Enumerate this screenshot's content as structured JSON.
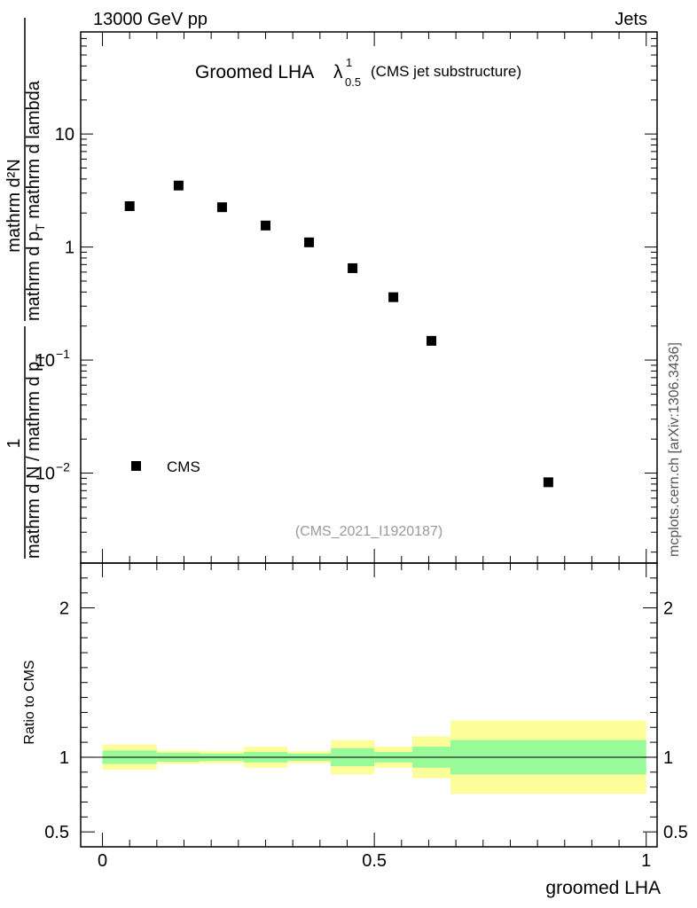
{
  "header": {
    "left": "13000 GeV pp",
    "right": "Jets"
  },
  "watermark": "mcplots.cern.ch [arXiv:1306.3436]",
  "chart_data": [
    {
      "type": "scatter",
      "title": {
        "main": "Groomed LHA",
        "lambda": "λ",
        "sup": "1",
        "sub": "0.5",
        "suffix": "(CMS jet substructure)"
      },
      "analysis_label": "(CMS_2021_I1920187)",
      "yscale": "log",
      "ylim": [
        0.0016,
        80
      ],
      "xlim": [
        -0.04,
        1.02
      ],
      "ylabel": {
        "numerator": "mathrm d²N",
        "denominator": "mathrm d p_T mathrm d lambda",
        "prefactor_num": "1",
        "prefactor_den": "mathrm d N / mathrm d p_T",
        "den2": "mathrm d p",
        "den2_sub": "T",
        "den2_rest": " mathrm d lambda",
        "pf_a": "mathrm d N / mathrm d p",
        "pf_sub": "T"
      },
      "yticks": [
        {
          "value": 10,
          "label": "10"
        },
        {
          "value": 1,
          "label": "1"
        },
        {
          "value": 0.1,
          "label": "10",
          "exp": "−1"
        },
        {
          "value": 0.01,
          "label": "10",
          "exp": "−2"
        }
      ],
      "legend": {
        "position": "bottom-left",
        "entries": [
          "CMS"
        ]
      },
      "series": [
        {
          "name": "CMS",
          "x": [
            0.05,
            0.14,
            0.22,
            0.3,
            0.38,
            0.46,
            0.535,
            0.605,
            0.82
          ],
          "y": [
            2.3,
            3.5,
            2.25,
            1.55,
            1.1,
            0.65,
            0.36,
            0.148,
            0.0083
          ]
        }
      ]
    },
    {
      "type": "area",
      "ylabel": "Ratio to CMS",
      "xlabel": "groomed LHA",
      "ylim": [
        0.4,
        2.3
      ],
      "xlim": [
        -0.04,
        1.02
      ],
      "xticks": [
        {
          "value": 0,
          "label": "0"
        },
        {
          "value": 0.5,
          "label": "0.5"
        },
        {
          "value": 1,
          "label": "1"
        }
      ],
      "yticks": [
        {
          "value": 2,
          "label": "2"
        },
        {
          "value": 1,
          "label": "1"
        },
        {
          "value": 0.5,
          "label": "0.5"
        }
      ],
      "reference_line": 1,
      "colors": {
        "inner": "#99fa99",
        "outer": "#fdfd99"
      },
      "bins": [
        {
          "x0": 0.0,
          "x1": 0.1,
          "inner": [
            0.955,
            1.045
          ],
          "outer": [
            0.915,
            1.085
          ]
        },
        {
          "x0": 0.1,
          "x1": 0.18,
          "inner": [
            0.97,
            1.03
          ],
          "outer": [
            0.955,
            1.045
          ]
        },
        {
          "x0": 0.18,
          "x1": 0.26,
          "inner": [
            0.975,
            1.025
          ],
          "outer": [
            0.96,
            1.04
          ]
        },
        {
          "x0": 0.26,
          "x1": 0.34,
          "inner": [
            0.965,
            1.035
          ],
          "outer": [
            0.93,
            1.07
          ]
        },
        {
          "x0": 0.34,
          "x1": 0.42,
          "inner": [
            0.975,
            1.025
          ],
          "outer": [
            0.96,
            1.04
          ]
        },
        {
          "x0": 0.42,
          "x1": 0.5,
          "inner": [
            0.94,
            1.06
          ],
          "outer": [
            0.885,
            1.115
          ]
        },
        {
          "x0": 0.5,
          "x1": 0.57,
          "inner": [
            0.965,
            1.035
          ],
          "outer": [
            0.93,
            1.07
          ]
        },
        {
          "x0": 0.57,
          "x1": 0.64,
          "inner": [
            0.93,
            1.07
          ],
          "outer": [
            0.86,
            1.14
          ]
        },
        {
          "x0": 0.64,
          "x1": 1.0,
          "inner": [
            0.885,
            1.115
          ],
          "outer": [
            0.755,
            1.245
          ]
        }
      ]
    }
  ]
}
